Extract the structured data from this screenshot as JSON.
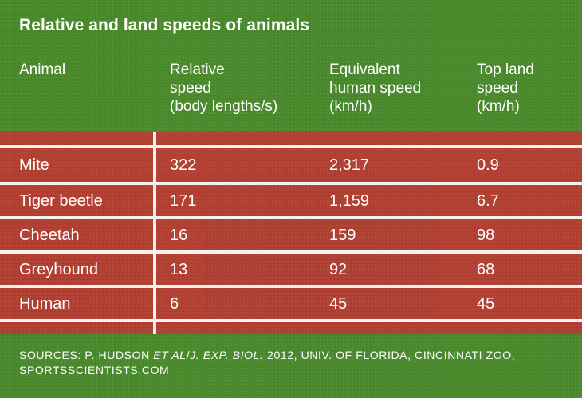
{
  "title": "Relative and land speeds of animals",
  "colors": {
    "grass": "#4a8a2c",
    "track": "#b24033",
    "lines": "#f4f1ee",
    "text": "#ffffff"
  },
  "chart_data": {
    "type": "table",
    "title": "Relative and land speeds of animals",
    "columns": [
      "Animal",
      "Relative\nspeed\n(body lengths/s)",
      "Equivalent\nhuman speed\n(km/h)",
      "Top land\nspeed\n(km/h)"
    ],
    "rows": [
      [
        "Mite",
        "322",
        "2,317",
        "0.9"
      ],
      [
        "Tiger beetle",
        "171",
        "1,159",
        "6.7"
      ],
      [
        "Cheetah",
        "16",
        "159",
        "98"
      ],
      [
        "Greyhound",
        "13",
        "92",
        "68"
      ],
      [
        "Human",
        "6",
        "45",
        "45"
      ]
    ]
  },
  "sources": {
    "prefix": "SOURCES: P. HUDSON ",
    "etal": "ET AL",
    "slash": "/",
    "journal": "J. EXP. BIOL.",
    "rest": " 2012, UNIV. OF FLORIDA, CINCINNATI ZOO, SPORTSSCIENTISTS.COM"
  }
}
